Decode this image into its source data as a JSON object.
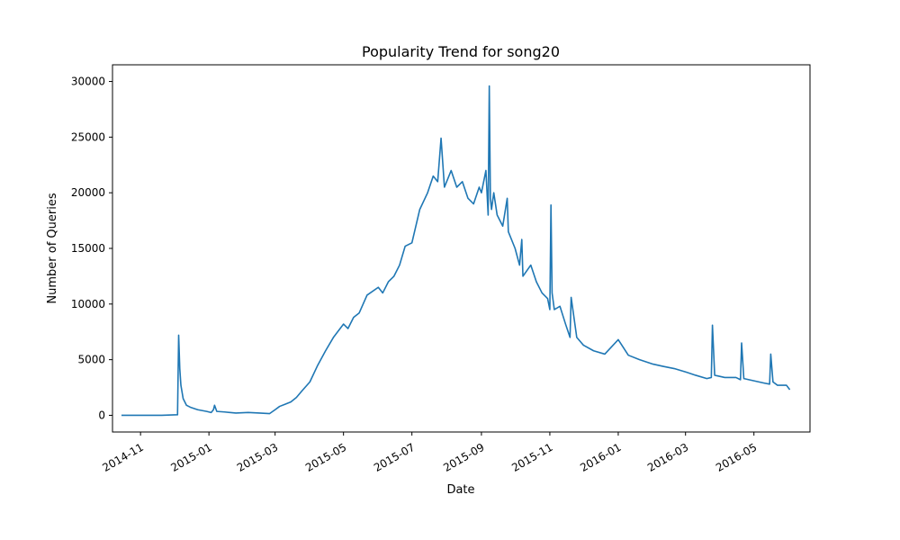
{
  "chart_data": {
    "type": "line",
    "title": "Popularity Trend for song20",
    "xlabel": "Date",
    "ylabel": "Number of Queries",
    "xlim": [
      "2014-10-07",
      "2016-06-20"
    ],
    "ylim": [
      -1500,
      31500
    ],
    "grid": false,
    "legend": "none",
    "line_color": "#1f77b4",
    "x_ticks": [
      "2014-11",
      "2015-01",
      "2015-03",
      "2015-05",
      "2015-07",
      "2015-09",
      "2015-11",
      "2016-01",
      "2016-03",
      "2016-05"
    ],
    "y_ticks": [
      0,
      5000,
      10000,
      15000,
      20000,
      25000,
      30000
    ],
    "series": [
      {
        "x": [
          "2014-10-15",
          "2014-11-01",
          "2014-11-20",
          "2014-12-04",
          "2014-12-05",
          "2014-12-06",
          "2014-12-07",
          "2014-12-09",
          "2014-12-12",
          "2014-12-16",
          "2014-12-22",
          "2014-12-30",
          "2015-01-03",
          "2015-01-05",
          "2015-01-06",
          "2015-01-08",
          "2015-01-15",
          "2015-01-25",
          "2015-02-05",
          "2015-02-15",
          "2015-02-24",
          "2015-03-01",
          "2015-03-05",
          "2015-03-10",
          "2015-03-15",
          "2015-03-20",
          "2015-03-25",
          "2015-04-01",
          "2015-04-08",
          "2015-04-15",
          "2015-04-22",
          "2015-05-01",
          "2015-05-05",
          "2015-05-10",
          "2015-05-15",
          "2015-05-22",
          "2015-06-01",
          "2015-06-05",
          "2015-06-10",
          "2015-06-15",
          "2015-06-20",
          "2015-06-25",
          "2015-07-01",
          "2015-07-08",
          "2015-07-15",
          "2015-07-20",
          "2015-07-24",
          "2015-07-27",
          "2015-07-30",
          "2015-08-05",
          "2015-08-10",
          "2015-08-15",
          "2015-08-20",
          "2015-08-25",
          "2015-08-30",
          "2015-09-01",
          "2015-09-05",
          "2015-09-07",
          "2015-09-08",
          "2015-09-09",
          "2015-09-10",
          "2015-09-12",
          "2015-09-15",
          "2015-09-20",
          "2015-09-24",
          "2015-09-25",
          "2015-10-01",
          "2015-10-05",
          "2015-10-07",
          "2015-10-08",
          "2015-10-15",
          "2015-10-20",
          "2015-10-25",
          "2015-10-30",
          "2015-11-01",
          "2015-11-02",
          "2015-11-03",
          "2015-11-05",
          "2015-11-10",
          "2015-11-15",
          "2015-11-19",
          "2015-11-20",
          "2015-11-25",
          "2015-12-01",
          "2015-12-10",
          "2015-12-20",
          "2016-01-01",
          "2016-01-10",
          "2016-01-20",
          "2016-02-01",
          "2016-02-10",
          "2016-02-20",
          "2016-03-01",
          "2016-03-10",
          "2016-03-20",
          "2016-03-24",
          "2016-03-25",
          "2016-03-27",
          "2016-04-05",
          "2016-04-15",
          "2016-04-19",
          "2016-04-20",
          "2016-04-22",
          "2016-05-01",
          "2016-05-10",
          "2016-05-15",
          "2016-05-16",
          "2016-05-18",
          "2016-05-22",
          "2016-05-30",
          "2016-06-02"
        ],
        "values": [
          0,
          0,
          0,
          50,
          7200,
          4200,
          2700,
          1500,
          900,
          700,
          500,
          350,
          250,
          500,
          900,
          350,
          300,
          200,
          250,
          200,
          150,
          500,
          800,
          1000,
          1200,
          1600,
          2200,
          3000,
          4500,
          5800,
          7000,
          8200,
          7800,
          8800,
          9200,
          10800,
          11500,
          11000,
          12000,
          12500,
          13500,
          15200,
          15500,
          18500,
          20000,
          21500,
          21000,
          24900,
          20500,
          22000,
          20500,
          21000,
          19500,
          19000,
          20500,
          20000,
          22000,
          18000,
          29600,
          19500,
          18500,
          20000,
          18000,
          17000,
          19500,
          16500,
          15000,
          13500,
          15800,
          12500,
          13500,
          12000,
          11000,
          10500,
          9500,
          18900,
          11000,
          9500,
          9800,
          8200,
          7000,
          10600,
          7000,
          6300,
          5800,
          5500,
          6800,
          5400,
          5000,
          4600,
          4400,
          4200,
          3900,
          3600,
          3300,
          3400,
          8100,
          3600,
          3400,
          3400,
          3200,
          6500,
          3300,
          3100,
          2900,
          2800,
          5500,
          3000,
          2700,
          2700,
          2300
        ]
      }
    ]
  }
}
